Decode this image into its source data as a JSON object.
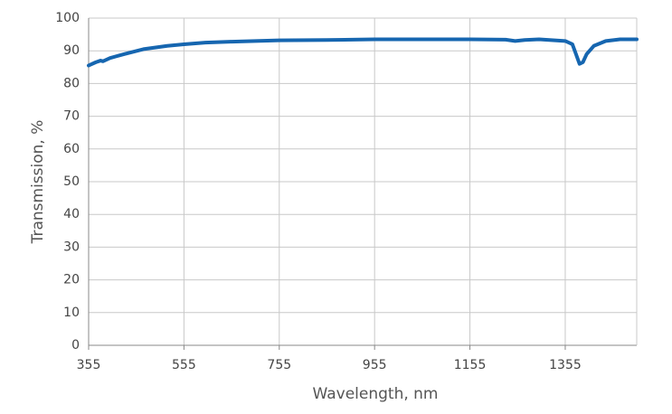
{
  "chart_data": {
    "type": "line",
    "x_label": "Wavelength, nm",
    "y_label": "Transmission, %",
    "xlim": [
      355,
      1505
    ],
    "ylim": [
      0,
      100
    ],
    "xticks": [
      355,
      555,
      755,
      955,
      1155,
      1355
    ],
    "yticks": [
      0,
      10,
      20,
      30,
      40,
      50,
      60,
      70,
      80,
      90,
      100
    ],
    "grid": true,
    "x": [
      355,
      370,
      380,
      385,
      400,
      430,
      470,
      520,
      555,
      600,
      655,
      755,
      855,
      955,
      1055,
      1155,
      1230,
      1250,
      1270,
      1300,
      1355,
      1370,
      1380,
      1385,
      1392,
      1400,
      1415,
      1440,
      1470,
      1505
    ],
    "series": [
      {
        "name": "Transmission",
        "color": "#1666b0",
        "values": [
          85.5,
          86.5,
          87,
          86.8,
          87.8,
          89,
          90.5,
          91.5,
          92,
          92.5,
          92.8,
          93.2,
          93.3,
          93.5,
          93.5,
          93.5,
          93.4,
          93.0,
          93.3,
          93.5,
          93.0,
          92,
          88,
          86,
          86.5,
          89,
          91.5,
          93,
          93.5,
          93.5
        ]
      }
    ]
  }
}
